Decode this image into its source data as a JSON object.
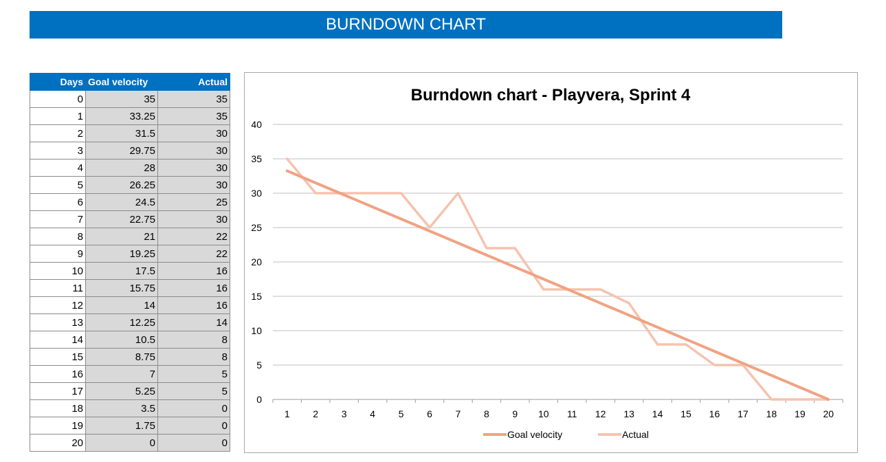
{
  "banner": {
    "title": "BURNDOWN CHART"
  },
  "table": {
    "headers": [
      "Days",
      "Goal velocity",
      "Actual"
    ],
    "rows": [
      [
        "0",
        "35",
        "35"
      ],
      [
        "1",
        "33.25",
        "35"
      ],
      [
        "2",
        "31.5",
        "30"
      ],
      [
        "3",
        "29.75",
        "30"
      ],
      [
        "4",
        "28",
        "30"
      ],
      [
        "5",
        "26.25",
        "30"
      ],
      [
        "6",
        "24.5",
        "25"
      ],
      [
        "7",
        "22.75",
        "30"
      ],
      [
        "8",
        "21",
        "22"
      ],
      [
        "9",
        "19.25",
        "22"
      ],
      [
        "10",
        "17.5",
        "16"
      ],
      [
        "11",
        "15.75",
        "16"
      ],
      [
        "12",
        "14",
        "16"
      ],
      [
        "13",
        "12.25",
        "14"
      ],
      [
        "14",
        "10.5",
        "8"
      ],
      [
        "15",
        "8.75",
        "8"
      ],
      [
        "16",
        "7",
        "5"
      ],
      [
        "17",
        "5.25",
        "5"
      ],
      [
        "18",
        "3.5",
        "0"
      ],
      [
        "19",
        "1.75",
        "0"
      ],
      [
        "20",
        "0",
        "0"
      ]
    ]
  },
  "chart_data": {
    "type": "line",
    "title": "Burndown chart - Playvera, Sprint 4",
    "xlabel": "",
    "ylabel": "",
    "categories": [
      "1",
      "2",
      "3",
      "4",
      "5",
      "6",
      "7",
      "8",
      "9",
      "10",
      "11",
      "12",
      "13",
      "14",
      "15",
      "16",
      "17",
      "18",
      "19",
      "20"
    ],
    "ylim": [
      0,
      40
    ],
    "yticks": [
      0,
      5,
      10,
      15,
      20,
      25,
      30,
      35,
      40
    ],
    "grid": true,
    "legend_position": "bottom",
    "series": [
      {
        "name": "Goal velocity",
        "color": "#f0a383",
        "values": [
          33.25,
          31.5,
          29.75,
          28,
          26.25,
          24.5,
          22.75,
          21,
          19.25,
          17.5,
          15.75,
          14,
          12.25,
          10.5,
          8.75,
          7,
          5.25,
          3.5,
          1.75,
          0
        ]
      },
      {
        "name": "Actual",
        "color": "#f6c2ae",
        "values": [
          35,
          30,
          30,
          30,
          30,
          25,
          30,
          22,
          22,
          16,
          16,
          16,
          14,
          8,
          8,
          5,
          5,
          0,
          0,
          0
        ]
      }
    ]
  }
}
